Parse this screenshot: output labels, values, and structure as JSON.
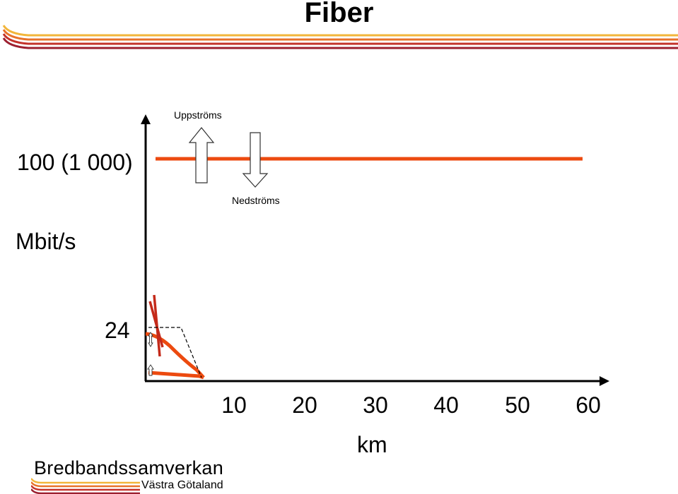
{
  "title": "Fiber",
  "y_axis": {
    "top_value": "100 (1 000)",
    "unit": "Mbit/s",
    "low_value": "24"
  },
  "x_axis": {
    "ticks": [
      "10",
      "20",
      "30",
      "40",
      "50",
      "60"
    ],
    "unit": "km"
  },
  "arrows": {
    "upstream": "Uppströms",
    "downstream": "Nedströms"
  },
  "logo": {
    "main": "Bredbandssamverkan",
    "sub": "Västra Götaland"
  },
  "colors": {
    "fiber_line": "#ec4a0f",
    "dsl_line": "#c42a1a",
    "stripe_yellow": "#f2b63a",
    "stripe_orange": "#e8732a",
    "stripe_red": "#c4322a",
    "stripe_darkred": "#9c2030"
  }
}
